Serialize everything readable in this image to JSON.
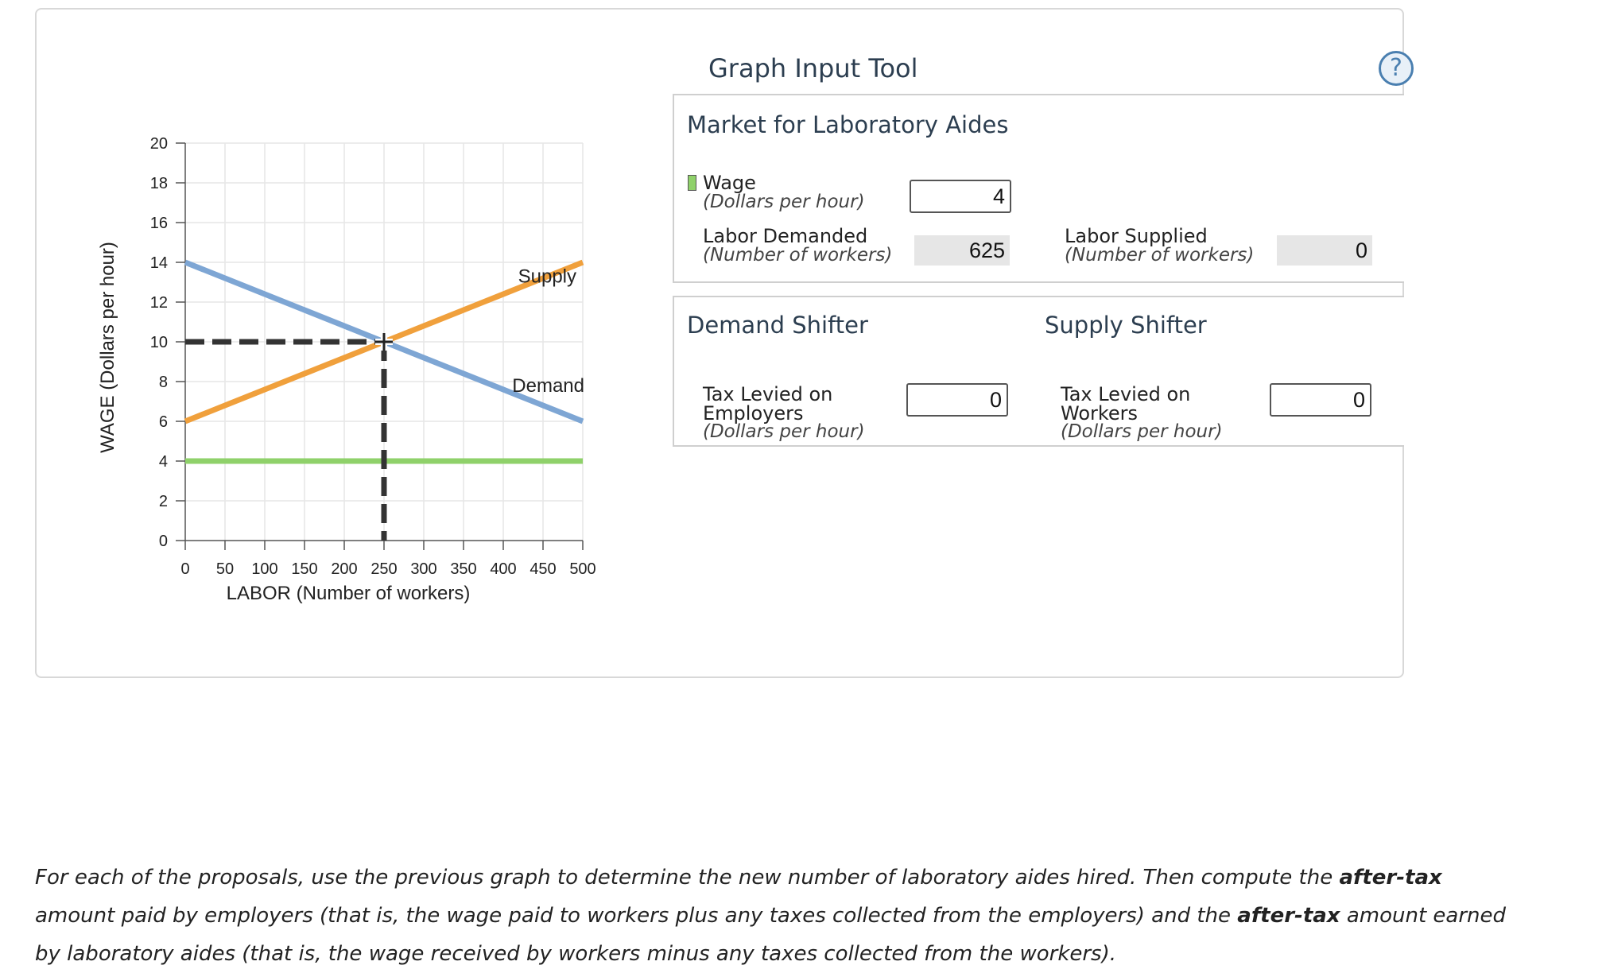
{
  "graph": {
    "y_axis_label": "WAGE (Dollars per hour)",
    "x_axis_label": "LABOR (Number of workers)",
    "y_ticks": [
      "0",
      "2",
      "4",
      "6",
      "8",
      "10",
      "12",
      "14",
      "16",
      "18",
      "20"
    ],
    "x_ticks": [
      "0",
      "50",
      "100",
      "150",
      "200",
      "250",
      "300",
      "350",
      "400",
      "450",
      "500"
    ],
    "supply_label": "Supply",
    "demand_label": "Demand"
  },
  "chart_data": {
    "type": "line",
    "xlabel": "LABOR (Number of workers)",
    "ylabel": "WAGE (Dollars per hour)",
    "xlim": [
      0,
      500
    ],
    "ylim": [
      0,
      20
    ],
    "grid": true,
    "series": [
      {
        "name": "Supply",
        "color": "#f0a03c",
        "points": [
          [
            0,
            6
          ],
          [
            500,
            14
          ]
        ]
      },
      {
        "name": "Demand",
        "color": "#7ea6d4",
        "points": [
          [
            0,
            14
          ],
          [
            500,
            6
          ]
        ]
      },
      {
        "color": "#8fd16a",
        "points": [
          [
            0,
            4
          ],
          [
            500,
            4
          ]
        ]
      }
    ],
    "equilibrium": {
      "x": 250,
      "y": 10
    }
  },
  "tool": {
    "title": "Graph Input Tool",
    "help_icon": "question-mark-icon",
    "market": {
      "title": "Market for Laboratory Aides",
      "wage_label": "Wage",
      "wage_unit": "(Dollars per hour)",
      "wage_value": "4",
      "labor_demanded_label": "Labor Demanded",
      "labor_demanded_unit": "(Number of workers)",
      "labor_demanded_value": "625",
      "labor_supplied_label": "Labor Supplied",
      "labor_supplied_unit": "(Number of workers)",
      "labor_supplied_value": "0"
    },
    "demand_shifter": {
      "title": "Demand Shifter",
      "label_line1": "Tax Levied on",
      "label_line2": "Employers",
      "unit": "(Dollars per hour)",
      "value": "0"
    },
    "supply_shifter": {
      "title": "Supply Shifter",
      "label_line1": "Tax Levied on",
      "label_line2": "Workers",
      "unit": "(Dollars per hour)",
      "value": "0"
    }
  },
  "instructions": {
    "part1": "For each of the proposals, use the previous graph to determine the new number of laboratory aides hired. Then compute the ",
    "bold1": "after-tax",
    "part2": " amount paid by employers (that is, the wage paid to workers plus any taxes collected from the employers) and the ",
    "bold2": "after-tax",
    "part3": " amount earned by laboratory aides (that is, the wage received by workers minus any taxes collected from the workers)."
  }
}
